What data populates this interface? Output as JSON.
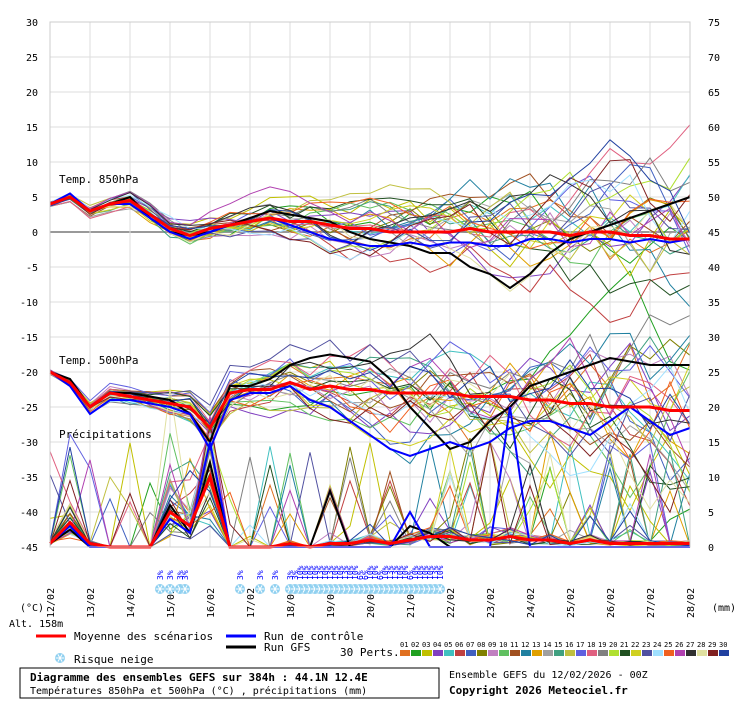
{
  "chart_data": {
    "type": "line",
    "title": "Diagramme des ensembles GEFS sur 384h : 44.1N 12.4E",
    "subtitle": "Températures 850hPa et 500hPa (°C) , précipitations (mm)",
    "run_info": "Ensemble GEFS du 12/02/2026 - 00Z",
    "copyright": "Copyright 2026 Meteociel.fr",
    "altitude_label": "Alt. 158m",
    "left_unit": "(°C)",
    "right_unit": "(mm)",
    "left_axis": {
      "min": -45,
      "max": 30,
      "ticks": [
        30,
        25,
        20,
        15,
        10,
        5,
        0,
        -5,
        -10,
        -15,
        -20,
        -25,
        -30,
        -35,
        -40,
        -45
      ]
    },
    "right_axis": {
      "min": 0,
      "max": 75,
      "ticks": [
        75,
        70,
        65,
        60,
        55,
        50,
        45,
        40,
        35,
        30,
        25,
        20,
        15,
        10,
        5,
        0
      ]
    },
    "x_dates": [
      "13/02",
      "14/02",
      "15/02",
      "16/02",
      "17/02",
      "18/02",
      "19/02",
      "20/02",
      "21/02",
      "22/02",
      "23/02",
      "24/02",
      "25/02",
      "26/02",
      "27/02",
      "28/02"
    ],
    "x_start_label": "12/02",
    "section_labels": {
      "t850": "Temp. 850hPa",
      "t500": "Temp. 500hPa",
      "precip": "Précipitations"
    },
    "legend": {
      "mean": {
        "label": "Moyenne des scénarios",
        "color": "#ff0000"
      },
      "control": {
        "label": "Run de contrôle",
        "color": "#0000ff"
      },
      "gfs": {
        "label": "Run GFS",
        "color": "#000000"
      },
      "snow": {
        "label": "Risque neige",
        "color": "#8fd0f0"
      },
      "perts_label": "30 Perts."
    },
    "members": [
      "01",
      "02",
      "03",
      "04",
      "05",
      "06",
      "07",
      "08",
      "09",
      "10",
      "11",
      "12",
      "13",
      "14",
      "15",
      "16",
      "17",
      "18",
      "19",
      "20",
      "21",
      "22",
      "23",
      "24",
      "25",
      "26",
      "27",
      "28",
      "29",
      "30"
    ],
    "member_colors": [
      "#e07020",
      "#20a020",
      "#c0c000",
      "#8040c0",
      "#40c0c0",
      "#c04040",
      "#4060c0",
      "#808000",
      "#c080c0",
      "#60c060",
      "#a05020",
      "#2080a0",
      "#e0a000",
      "#a0a0a0",
      "#40a080",
      "#c0c040",
      "#6060e0",
      "#e06080",
      "#808080",
      "#b0e030",
      "#205020",
      "#d0d020",
      "#5050a0",
      "#a0e0ff",
      "#f06020",
      "#b040b0",
      "#303030",
      "#e0e0a0",
      "#802020",
      "#2040a0"
    ],
    "snow_markers": [
      {
        "t": 66,
        "pct": "3%"
      },
      {
        "t": 72,
        "pct": "3%"
      },
      {
        "t": 78,
        "pct": "3%"
      },
      {
        "t": 81,
        "pct": "3%"
      },
      {
        "t": 114,
        "pct": "3%"
      },
      {
        "t": 126,
        "pct": "3%"
      },
      {
        "t": 135,
        "pct": "3%"
      },
      {
        "t": 144,
        "pct": "3%"
      },
      {
        "t": 147,
        "pct": "3%"
      },
      {
        "t": 150,
        "pct": "10%"
      },
      {
        "t": 153,
        "pct": "10%"
      },
      {
        "t": 156,
        "pct": "10%"
      },
      {
        "t": 159,
        "pct": "10%"
      },
      {
        "t": 162,
        "pct": "13%"
      },
      {
        "t": 165,
        "pct": "10%"
      },
      {
        "t": 168,
        "pct": "13%"
      },
      {
        "t": 171,
        "pct": "10%"
      },
      {
        "t": 174,
        "pct": "10%"
      },
      {
        "t": 177,
        "pct": "13%"
      },
      {
        "t": 180,
        "pct": "10%"
      },
      {
        "t": 183,
        "pct": "10%"
      },
      {
        "t": 186,
        "pct": "6%"
      },
      {
        "t": 189,
        "pct": "6%"
      },
      {
        "t": 192,
        "pct": "10%"
      },
      {
        "t": 195,
        "pct": "10%"
      },
      {
        "t": 198,
        "pct": "6%"
      },
      {
        "t": 201,
        "pct": "10%"
      },
      {
        "t": 204,
        "pct": "13%"
      },
      {
        "t": 207,
        "pct": "13%"
      },
      {
        "t": 210,
        "pct": "10%"
      },
      {
        "t": 213,
        "pct": "10%"
      },
      {
        "t": 216,
        "pct": "6%"
      },
      {
        "t": 219,
        "pct": "10%"
      },
      {
        "t": 222,
        "pct": "10%"
      },
      {
        "t": 225,
        "pct": "10%"
      },
      {
        "t": 228,
        "pct": "10%"
      },
      {
        "t": 231,
        "pct": "13%"
      },
      {
        "t": 234,
        "pct": "10%"
      }
    ],
    "series_mean": {
      "t_hours": [
        0,
        12,
        24,
        36,
        48,
        60,
        72,
        84,
        96,
        108,
        120,
        132,
        144,
        156,
        168,
        180,
        192,
        204,
        216,
        228,
        240,
        252,
        264,
        276,
        288,
        300,
        312,
        324,
        336,
        348,
        360,
        372,
        384
      ],
      "t850": [
        4.0,
        5.0,
        3.0,
        4.0,
        4.5,
        2.5,
        0.5,
        -0.5,
        0.5,
        1.0,
        1.5,
        2.0,
        1.5,
        1.5,
        1.0,
        0.5,
        0.5,
        0.0,
        0.0,
        0.0,
        0.0,
        0.5,
        0.0,
        0.0,
        0.0,
        0.0,
        -0.5,
        0.0,
        0.0,
        -0.5,
        -0.5,
        -1.0,
        -1.0
      ],
      "t500": [
        -20.0,
        -21.5,
        -25.0,
        -23.0,
        -23.5,
        -24.0,
        -24.5,
        -25.0,
        -28.0,
        -23.0,
        -22.5,
        -22.5,
        -21.5,
        -22.5,
        -22.0,
        -22.5,
        -22.5,
        -23.0,
        -23.0,
        -23.0,
        -23.0,
        -23.5,
        -23.5,
        -23.5,
        -24.0,
        -24.0,
        -24.5,
        -24.5,
        -25.0,
        -25.0,
        -25.0,
        -25.5,
        -25.5
      ],
      "precip": [
        0.5,
        3.5,
        0.5,
        0.0,
        0.0,
        0.0,
        5.0,
        3.0,
        10.0,
        0.0,
        0.0,
        0.0,
        0.5,
        0.0,
        0.5,
        0.5,
        1.0,
        0.5,
        1.0,
        1.5,
        1.5,
        1.0,
        1.0,
        1.5,
        1.0,
        1.0,
        0.5,
        1.0,
        0.5,
        0.5,
        0.5,
        0.5,
        0.5
      ]
    },
    "series_control": {
      "t_hours": [
        0,
        12,
        24,
        36,
        48,
        60,
        72,
        84,
        96,
        108,
        120,
        132,
        144,
        156,
        168,
        180,
        192,
        204,
        216,
        228,
        240,
        252,
        264,
        276,
        288,
        300,
        312,
        324,
        336,
        348,
        360,
        372,
        384
      ],
      "t850": [
        4.0,
        5.5,
        3.0,
        4.0,
        4.0,
        2.0,
        0.0,
        -1.0,
        0.0,
        1.0,
        1.5,
        2.0,
        1.0,
        0.0,
        -1.0,
        -1.5,
        -2.0,
        -2.0,
        -1.5,
        -2.0,
        -1.5,
        -1.5,
        -2.0,
        -2.0,
        -1.0,
        -1.0,
        -1.5,
        -1.0,
        -1.0,
        -1.5,
        -1.0,
        -1.5,
        -1.0
      ],
      "t500": [
        -20.0,
        -22.0,
        -26.0,
        -24.0,
        -24.0,
        -24.5,
        -25.0,
        -26.0,
        -31.0,
        -24.0,
        -23.0,
        -23.0,
        -22.0,
        -24.0,
        -25.0,
        -27.0,
        -29.0,
        -31.0,
        -32.0,
        -31.0,
        -30.0,
        -31.0,
        -30.0,
        -28.0,
        -27.0,
        -27.0,
        -28.0,
        -29.0,
        -27.0,
        -25.0,
        -27.0,
        -29.0,
        -28.0
      ],
      "precip": [
        0.5,
        3.0,
        0.0,
        0.0,
        0.0,
        0.0,
        4.0,
        2.0,
        15.0,
        0.0,
        0.0,
        0.0,
        0.0,
        0.0,
        0.0,
        0.0,
        0.0,
        0.0,
        5.0,
        0.0,
        0.0,
        0.0,
        0.0,
        20.0,
        0.0,
        0.0,
        0.0,
        0.0,
        0.0,
        0.0,
        0.0,
        0.0,
        0.0
      ]
    },
    "series_gfs": {
      "t_hours": [
        0,
        12,
        24,
        36,
        48,
        60,
        72,
        84,
        96,
        108,
        120,
        132,
        144,
        156,
        168,
        180,
        192,
        204,
        216,
        228,
        240,
        252,
        264,
        276,
        288,
        300,
        312,
        324,
        336,
        348,
        360,
        372,
        384
      ],
      "t850": [
        4.0,
        5.0,
        3.0,
        4.0,
        5.0,
        2.0,
        0.0,
        -0.5,
        0.0,
        1.0,
        2.0,
        3.0,
        2.5,
        2.0,
        1.5,
        0.0,
        -1.0,
        -1.5,
        -2.0,
        -3.0,
        -3.0,
        -5.0,
        -6.0,
        -8.0,
        -6.0,
        -3.0,
        -1.0,
        0.0,
        1.0,
        2.0,
        3.0,
        4.0,
        5.0
      ],
      "t500": [
        -20.0,
        -21.0,
        -25.0,
        -23.0,
        -23.0,
        -23.5,
        -24.0,
        -26.0,
        -30.0,
        -22.0,
        -22.0,
        -21.0,
        -19.0,
        -18.0,
        -17.5,
        -18.0,
        -18.5,
        -21.0,
        -25.0,
        -28.0,
        -31.0,
        -30.0,
        -27.0,
        -25.0,
        -22.0,
        -21.0,
        -20.0,
        -19.0,
        -18.0,
        -18.5,
        -19.0,
        -19.0,
        -19.0
      ],
      "precip": [
        0.5,
        2.5,
        0.0,
        0.0,
        0.0,
        0.0,
        6.0,
        2.0,
        12.0,
        0.0,
        0.0,
        0.0,
        0.0,
        0.0,
        8.0,
        0.0,
        0.0,
        0.0,
        3.0,
        2.0,
        0.0,
        0.0,
        0.0,
        0.0,
        0.0,
        0.0,
        0.0,
        0.0,
        0.0,
        0.0,
        0.0,
        0.0,
        0.0
      ]
    }
  }
}
